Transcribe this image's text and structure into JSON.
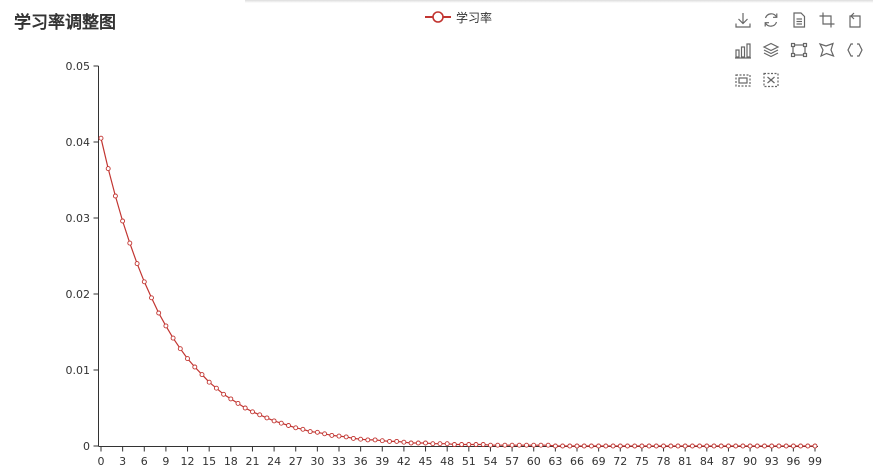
{
  "header": {
    "title": "学习率调整图"
  },
  "legend": {
    "items": [
      {
        "label": "学习率",
        "color": "#c23531"
      }
    ]
  },
  "toolbox": {
    "icons": [
      "download-icon",
      "refresh-icon",
      "data-view-icon",
      "zoom-icon",
      "zoom-back-icon",
      "bar-chart-icon",
      "stack-icon",
      "rect-select-icon",
      "lasso-select-icon",
      "keep-select-icon",
      "clear-select-icon",
      "clear-icon"
    ]
  },
  "chart_data": {
    "type": "line",
    "title": "学习率调整图",
    "xlabel": "",
    "ylabel": "",
    "series": [
      {
        "name": "学习率",
        "color": "#c23531",
        "marker": "empty-circle",
        "values": [
          0.0405,
          0.0365,
          0.0329,
          0.0296,
          0.0267,
          0.024,
          0.0216,
          0.0195,
          0.0175,
          0.0158,
          0.0142,
          0.0128,
          0.0115,
          0.0104,
          0.0094,
          0.0084,
          0.0076,
          0.0068,
          0.0062,
          0.0056,
          0.005,
          0.0045,
          0.0041,
          0.0037,
          0.0033,
          0.003,
          0.0027,
          0.0024,
          0.0022,
          0.0019,
          0.0018,
          0.0016,
          0.0014,
          0.0013,
          0.0012,
          0.001,
          0.0009,
          0.0008,
          0.0008,
          0.0007,
          0.0006,
          0.0006,
          0.0005,
          0.0004,
          0.0004,
          0.0004,
          0.0003,
          0.0003,
          0.0003,
          0.0002,
          0.0002,
          0.0002,
          0.0002,
          0.0002,
          0.0001,
          0.0001,
          0.0001,
          0.0001,
          0.0001,
          0.0001,
          0.0001,
          0.0001,
          0.0001,
          0.0,
          0.0,
          0.0,
          0.0,
          0.0,
          0.0,
          0.0,
          0.0,
          0.0,
          0.0,
          0.0,
          0.0,
          0.0,
          0.0,
          0.0,
          0.0,
          0.0,
          0.0,
          0.0,
          0.0,
          0.0,
          0.0,
          0.0,
          0.0,
          0.0,
          0.0,
          0.0,
          0.0,
          0.0,
          0.0,
          0.0,
          0.0,
          0.0,
          0.0,
          0.0,
          0.0,
          0.0
        ]
      }
    ],
    "x": [
      0,
      1,
      2,
      3,
      4,
      5,
      6,
      7,
      8,
      9,
      10,
      11,
      12,
      13,
      14,
      15,
      16,
      17,
      18,
      19,
      20,
      21,
      22,
      23,
      24,
      25,
      26,
      27,
      28,
      29,
      30,
      31,
      32,
      33,
      34,
      35,
      36,
      37,
      38,
      39,
      40,
      41,
      42,
      43,
      44,
      45,
      46,
      47,
      48,
      49,
      50,
      51,
      52,
      53,
      54,
      55,
      56,
      57,
      58,
      59,
      60,
      61,
      62,
      63,
      64,
      65,
      66,
      67,
      68,
      69,
      70,
      71,
      72,
      73,
      74,
      75,
      76,
      77,
      78,
      79,
      80,
      81,
      82,
      83,
      84,
      85,
      86,
      87,
      88,
      89,
      90,
      91,
      92,
      93,
      94,
      95,
      96,
      97,
      98,
      99
    ],
    "x_tick_labels": [
      "0",
      "3",
      "6",
      "9",
      "12",
      "15",
      "18",
      "21",
      "24",
      "27",
      "30",
      "33",
      "36",
      "39",
      "42",
      "45",
      "48",
      "51",
      "54",
      "57",
      "60",
      "63",
      "66",
      "69",
      "72",
      "75",
      "78",
      "81",
      "84",
      "87",
      "90",
      "93",
      "96",
      "99"
    ],
    "y_tick_labels": [
      "0",
      "0.01",
      "0.02",
      "0.03",
      "0.04",
      "0.05"
    ],
    "ylim": [
      0,
      0.05
    ],
    "xlim": [
      0,
      99
    ],
    "grid": false,
    "legend_position": "top-center"
  }
}
